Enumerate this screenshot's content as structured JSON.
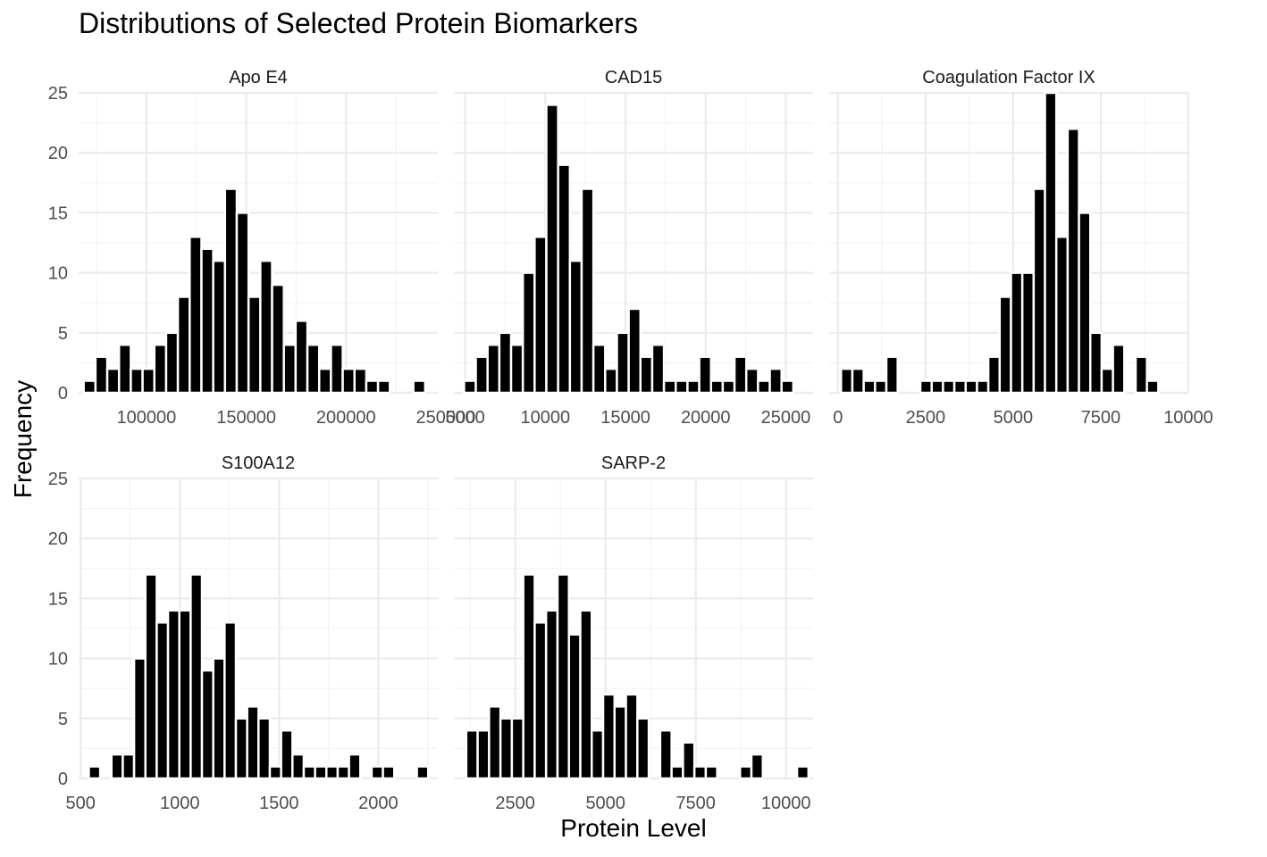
{
  "chart_data": {
    "type": "bar",
    "title": "Distributions of Selected Protein Biomarkers",
    "xlabel": "Protein Level",
    "ylabel": "Frequency",
    "grid": true,
    "colors": {
      "bar_fill": "#000000",
      "bar_outline": "#ffffff",
      "grid_major": "#ebebeb",
      "grid_minor": "#f3f3f3",
      "text": "#4d4d4d"
    },
    "panels": [
      {
        "name": "Apo E4",
        "xlim": [
          66000,
          246000
        ],
        "x_ticks": [
          100000,
          150000,
          200000,
          250000
        ],
        "x_tick_labels": [
          "100000",
          "150000",
          "200000",
          "250000"
        ],
        "ylim": [
          0,
          25
        ],
        "y_ticks": [
          0,
          5,
          10,
          15,
          20,
          25
        ],
        "y_tick_labels": [
          "0",
          "5",
          "10",
          "15",
          "20",
          "25"
        ],
        "show_y_labels": true,
        "bin_width": 5900,
        "x": [
          71500,
          77400,
          83300,
          89200,
          95100,
          101000,
          106900,
          112800,
          118700,
          124600,
          130500,
          136400,
          142300,
          148200,
          154100,
          160000,
          165900,
          171800,
          177700,
          183600,
          189500,
          195400,
          201300,
          207200,
          213100,
          219000,
          224900,
          230800,
          236700
        ],
        "values": [
          1,
          3,
          2,
          4,
          2,
          2,
          4,
          5,
          8,
          13,
          12,
          11,
          17,
          15,
          8,
          11,
          9,
          4,
          6,
          4,
          2,
          4,
          2,
          2,
          1,
          1,
          0,
          0,
          1
        ]
      },
      {
        "name": "CAD15",
        "xlim": [
          4300,
          26700
        ],
        "x_ticks": [
          5000,
          10000,
          15000,
          20000,
          25000
        ],
        "x_tick_labels": [
          "5000",
          "10000",
          "15000",
          "20000",
          "25000"
        ],
        "ylim": [
          0,
          25
        ],
        "y_ticks": [
          0,
          5,
          10,
          15,
          20,
          25
        ],
        "y_tick_labels": [
          "0",
          "5",
          "10",
          "15",
          "20",
          "25"
        ],
        "show_y_labels": false,
        "bin_width": 733,
        "x": [
          5300,
          6033,
          6767,
          7500,
          8233,
          8967,
          9700,
          10433,
          11167,
          11900,
          12633,
          13367,
          14100,
          14833,
          15567,
          16300,
          17033,
          17767,
          18500,
          19233,
          19967,
          20700,
          21433,
          22167,
          22900,
          23633,
          24367,
          25100
        ],
        "values": [
          1,
          3,
          4,
          5,
          4,
          10,
          13,
          24,
          19,
          11,
          17,
          4,
          2,
          5,
          7,
          3,
          4,
          1,
          1,
          1,
          3,
          1,
          1,
          3,
          2,
          1,
          2,
          1
        ]
      },
      {
        "name": "Coagulation Factor IX",
        "xlim": [
          -250,
          10000
        ],
        "x_ticks": [
          0,
          2500,
          5000,
          7500,
          10000
        ],
        "x_tick_labels": [
          "0",
          "2500",
          "5000",
          "7500",
          "10000"
        ],
        "ylim": [
          0,
          25
        ],
        "y_ticks": [
          0,
          5,
          10,
          15,
          20,
          25
        ],
        "y_tick_labels": [
          "0",
          "5",
          "10",
          "15",
          "20",
          "25"
        ],
        "show_y_labels": false,
        "bin_width": 323,
        "x": [
          250,
          573,
          897,
          1220,
          1543,
          1867,
          2190,
          2513,
          2837,
          3160,
          3483,
          3807,
          4130,
          4453,
          4777,
          5100,
          5423,
          5747,
          6070,
          6393,
          6717,
          7040,
          7363,
          7687,
          8010,
          8333,
          8657,
          8980,
          9303
        ],
        "values": [
          2,
          2,
          1,
          1,
          3,
          0,
          0,
          1,
          1,
          1,
          1,
          1,
          1,
          3,
          8,
          10,
          10,
          17,
          25,
          13,
          22,
          15,
          5,
          2,
          4,
          0,
          3,
          1,
          0
        ]
      },
      {
        "name": "S100A12",
        "xlim": [
          490,
          2300
        ],
        "x_ticks": [
          500,
          1000,
          1500,
          2000
        ],
        "x_tick_labels": [
          "500",
          "1000",
          "1500",
          "2000"
        ],
        "ylim": [
          0,
          25
        ],
        "y_ticks": [
          0,
          5,
          10,
          15,
          20,
          25
        ],
        "y_tick_labels": [
          "0",
          "5",
          "10",
          "15",
          "20",
          "25"
        ],
        "show_y_labels": true,
        "bin_width": 57,
        "x": [
          570,
          627,
          684,
          741,
          798,
          855,
          912,
          969,
          1026,
          1083,
          1140,
          1197,
          1254,
          1311,
          1368,
          1425,
          1482,
          1539,
          1596,
          1653,
          1710,
          1767,
          1824,
          1881,
          1938,
          1995,
          2052,
          2109,
          2166,
          2223
        ],
        "values": [
          1,
          0,
          2,
          2,
          10,
          17,
          13,
          14,
          14,
          17,
          9,
          10,
          13,
          5,
          6,
          5,
          1,
          4,
          2,
          1,
          1,
          1,
          1,
          2,
          0,
          1,
          1,
          0,
          0,
          1
        ]
      },
      {
        "name": "SARP-2",
        "xlim": [
          800,
          10750
        ],
        "x_ticks": [
          2500,
          5000,
          7500,
          10000
        ],
        "x_tick_labels": [
          "2500",
          "5000",
          "7500",
          "10000"
        ],
        "ylim": [
          0,
          25
        ],
        "y_ticks": [
          0,
          5,
          10,
          15,
          20,
          25
        ],
        "y_tick_labels": [
          "0",
          "5",
          "10",
          "15",
          "20",
          "25"
        ],
        "show_y_labels": false,
        "bin_width": 316,
        "x": [
          1300,
          1616,
          1932,
          2248,
          2564,
          2880,
          3196,
          3512,
          3828,
          4144,
          4460,
          4776,
          5092,
          5408,
          5724,
          6040,
          6356,
          6672,
          6988,
          7304,
          7620,
          7936,
          8252,
          8568,
          8884,
          9200,
          9516,
          9832,
          10148,
          10464
        ],
        "values": [
          4,
          4,
          6,
          5,
          5,
          17,
          13,
          14,
          17,
          12,
          14,
          4,
          7,
          6,
          7,
          5,
          0,
          4,
          1,
          3,
          1,
          1,
          0,
          0,
          1,
          2,
          0,
          0,
          0,
          1
        ]
      }
    ]
  }
}
